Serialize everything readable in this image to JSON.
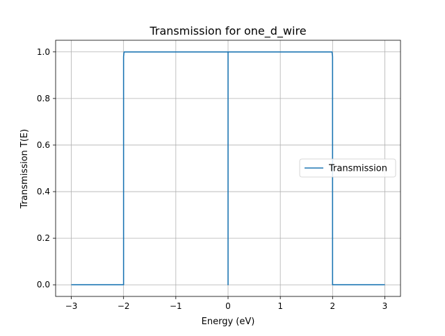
{
  "chart_data": {
    "type": "line",
    "title": "Transmission for one_d_wire",
    "xlabel": "Energy (eV)",
    "ylabel": "Transmission T(E)",
    "xlim": [
      -3.3,
      3.3
    ],
    "ylim": [
      -0.05,
      1.05
    ],
    "xticks": [
      -3,
      -2,
      -1,
      0,
      1,
      2,
      3
    ],
    "xtick_labels": [
      "−3",
      "−2",
      "−1",
      "0",
      "1",
      "2",
      "3"
    ],
    "yticks": [
      0.0,
      0.2,
      0.4,
      0.6,
      0.8,
      1.0
    ],
    "ytick_labels": [
      "0.0",
      "0.2",
      "0.4",
      "0.6",
      "0.8",
      "1.0"
    ],
    "grid": true,
    "legend_position": "center-right",
    "series": [
      {
        "name": "Transmission",
        "color": "#1f77b4",
        "x": [
          -3.0,
          -2.0,
          -2.0,
          -1.99,
          0.0,
          0.0,
          0.0,
          0.01,
          1.99,
          2.0,
          2.0,
          3.0
        ],
        "y": [
          0.0,
          0.0,
          0.98,
          1.0,
          1.0,
          0.0,
          1.0,
          1.0,
          1.0,
          0.98,
          0.0,
          0.0
        ]
      }
    ]
  }
}
